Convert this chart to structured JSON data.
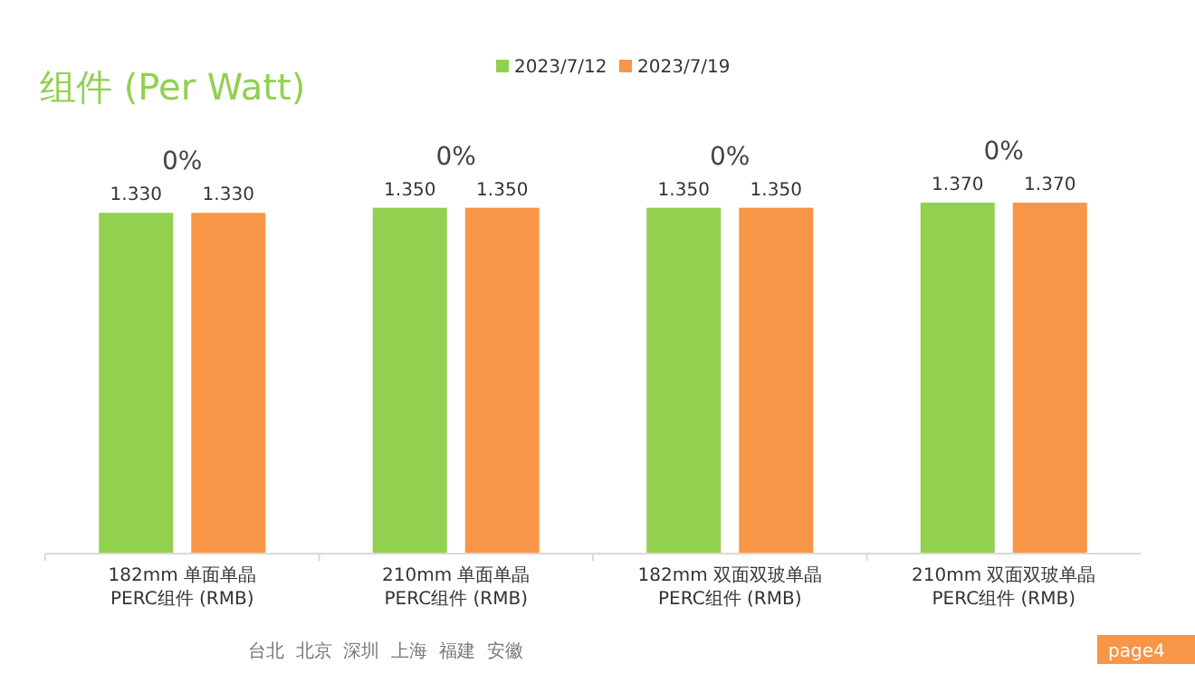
{
  "chart_data": {
    "type": "bar",
    "title": "组件 (Per Watt)",
    "categories": [
      "182mm 单面单晶\nPERC组件 (RMB)",
      "210mm 单面单晶\nPERC组件 (RMB)",
      "182mm 双面双玻单晶\nPERC组件 (RMB)",
      "210mm 双面双玻单晶\nPERC组件 (RMB)"
    ],
    "series": [
      {
        "name": "2023/7/12",
        "color": "#92d050",
        "values": [
          1.33,
          1.35,
          1.35,
          1.37
        ],
        "value_labels": [
          "1.330",
          "1.350",
          "1.350",
          "1.370"
        ]
      },
      {
        "name": "2023/7/19",
        "color": "#f79646",
        "values": [
          1.33,
          1.35,
          1.35,
          1.37
        ],
        "value_labels": [
          "1.330",
          "1.350",
          "1.350",
          "1.370"
        ]
      }
    ],
    "tick_labels": "x",
    "legend": "top",
    "annotations": [
      "0%",
      "0%",
      "0%",
      "0%",
      "台北  北京  深圳  上海  福建  安徽",
      "page4"
    ]
  }
}
